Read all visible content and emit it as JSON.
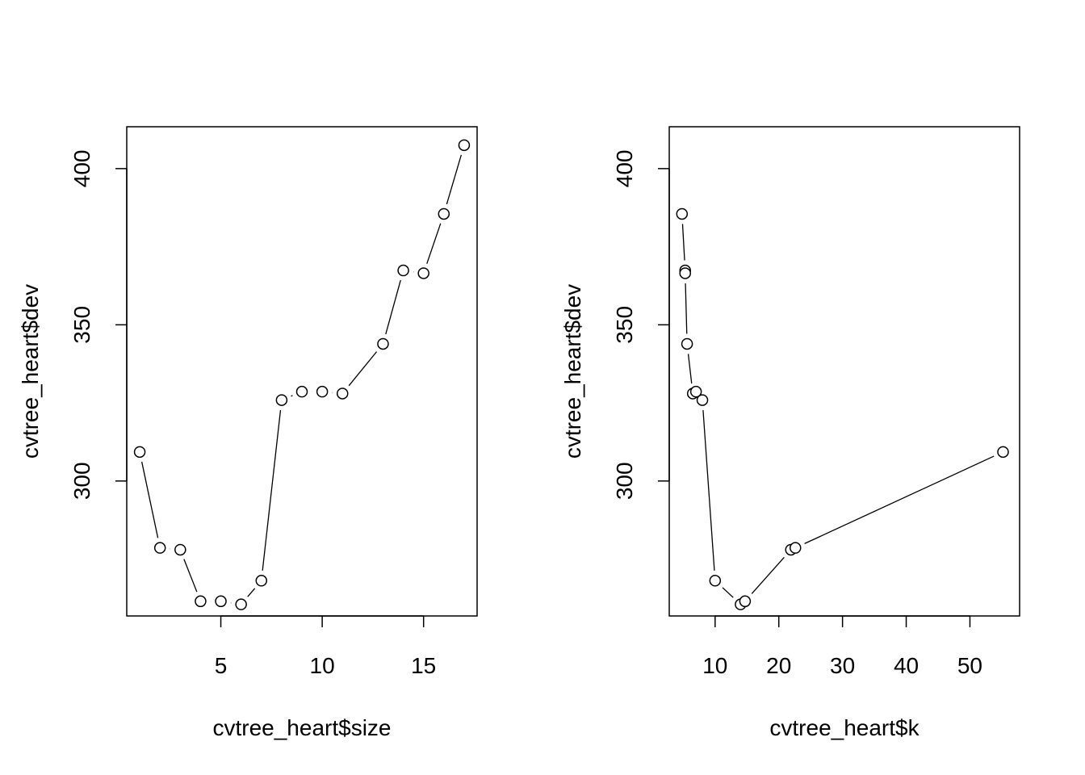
{
  "chart_data": [
    {
      "type": "line",
      "markers": "open-circle",
      "line_style": "b",
      "title": "",
      "xlabel": "cvtree_heart$size",
      "ylabel": "cvtree_heart$dev",
      "xlim": [
        0.36,
        17.64
      ],
      "ylim": [
        256.8,
        413.4
      ],
      "xticks": [
        5,
        10,
        15
      ],
      "xtick_labels": [
        "5",
        "10",
        "15"
      ],
      "yticks": [
        300,
        350,
        400
      ],
      "ytick_labels": [
        "300",
        "350",
        "400"
      ],
      "x": [
        17,
        16,
        15,
        14,
        13,
        11,
        10,
        9,
        8,
        7,
        6,
        5,
        4,
        3,
        2,
        1
      ],
      "y": [
        407.5,
        385.5,
        366.5,
        367.4,
        343.9,
        328.0,
        328.6,
        328.6,
        325.9,
        268.1,
        260.5,
        261.5,
        261.5,
        278.0,
        278.6,
        309.3
      ]
    },
    {
      "type": "line",
      "markers": "open-circle",
      "line_style": "b",
      "title": "",
      "xlabel": "cvtree_heart$k",
      "ylabel": "cvtree_heart$dev",
      "xlim": [
        2.8,
        57.8
      ],
      "ylim": [
        256.8,
        413.4
      ],
      "xticks": [
        10,
        20,
        30,
        40,
        50
      ],
      "xtick_labels": [
        "10",
        "20",
        "30",
        "40",
        "50"
      ],
      "yticks": [
        300,
        350,
        400
      ],
      "ytick_labels": [
        "300",
        "350",
        "400"
      ],
      "x": [
        4.8,
        5.3,
        5.3,
        5.6,
        6.5,
        7.0,
        8.0,
        10.0,
        14.0,
        14.7,
        21.9,
        22.6,
        55.2
      ],
      "y": [
        385.5,
        367.4,
        366.5,
        343.9,
        328.0,
        328.6,
        325.9,
        268.1,
        260.5,
        261.5,
        278.0,
        278.6,
        309.3
      ]
    }
  ]
}
